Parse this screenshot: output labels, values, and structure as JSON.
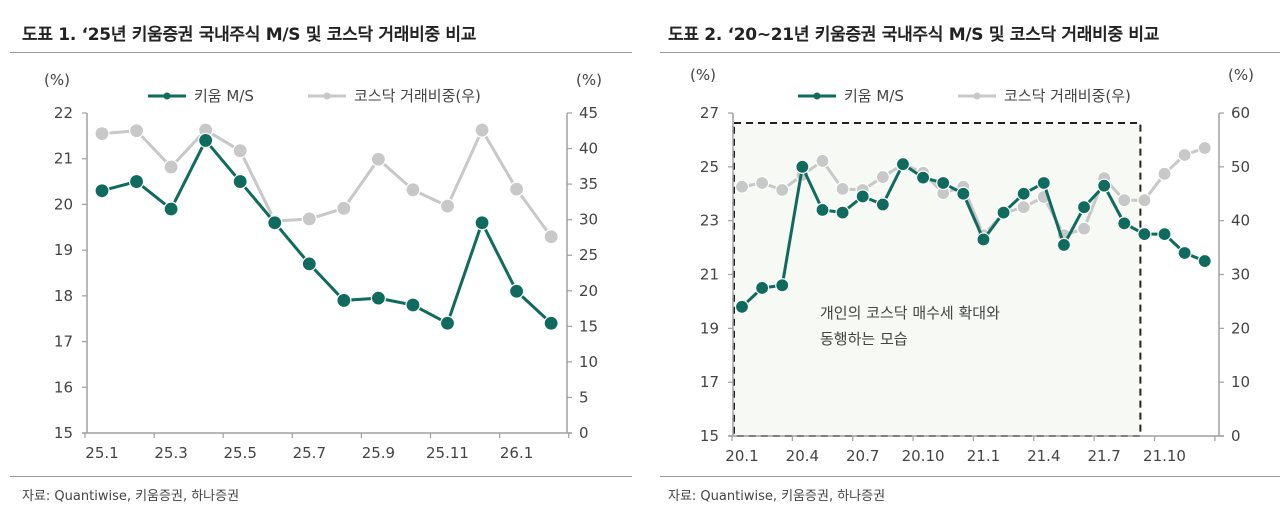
{
  "charts": [
    {
      "title": "도표 1. ‘25년 키움증권 국내주식 M/S 및 코스닥 거래비중 비교",
      "source": "자료: Quantiwise, 키움증권, 하나증권"
    },
    {
      "title": "도표 2. ‘20~21년 키움증권 국내주식 M/S 및 코스닥 거래비중 비교",
      "source": "자료: Quantiwise, 키움증권, 하나증권",
      "annotation": [
        "개인의 코스닥 매수세 확대와",
        "동행하는 모습"
      ]
    }
  ],
  "colors": {
    "kiwoom": "#0e6b5e",
    "kosdaq": "#c8c8c8",
    "highlight_bg": "#f6f9f4"
  },
  "chart_data": [
    {
      "type": "line",
      "title": "도표 1. ‘25년 키움증권 국내주식 M/S 및 코스닥 거래비중 비교",
      "x": [
        "25.1",
        "25.2",
        "25.3",
        "25.4",
        "25.5",
        "25.6",
        "25.7",
        "25.8",
        "25.9",
        "25.10",
        "25.11",
        "25.12",
        "26.1",
        "26.2"
      ],
      "xtick_labels": [
        "25.1",
        "25.3",
        "25.5",
        "25.7",
        "25.9",
        "25.11",
        "26.1"
      ],
      "ylabel_left": "(%)",
      "ylabel_right": "(%)",
      "ylim_left": [
        15,
        22
      ],
      "yticks_left": [
        15,
        16,
        17,
        18,
        19,
        20,
        21,
        22
      ],
      "ylim_right": [
        0,
        45
      ],
      "yticks_right": [
        0,
        5,
        10,
        15,
        20,
        25,
        30,
        35,
        40,
        45
      ],
      "legend_position": "top",
      "grid": false,
      "series": [
        {
          "name": "키움 M/S",
          "axis": "left",
          "values": [
            20.3,
            20.5,
            19.9,
            21.4,
            20.5,
            19.6,
            18.7,
            17.9,
            17.95,
            17.8,
            17.4,
            19.6,
            18.1,
            17.4
          ]
        },
        {
          "name": "코스닥 거래비중(우)",
          "axis": "right",
          "values": [
            42.1,
            42.5,
            37.4,
            42.6,
            39.7,
            29.8,
            30.1,
            31.6,
            38.5,
            34.2,
            31.9,
            42.6,
            34.3,
            27.6
          ]
        }
      ]
    },
    {
      "type": "line",
      "title": "도표 2. ‘20~21년 키움증권 국내주식 M/S 및 코스닥 거래비중 비교",
      "x": [
        "20.1",
        "20.2",
        "20.3",
        "20.4",
        "20.5",
        "20.6",
        "20.7",
        "20.8",
        "20.9",
        "20.10",
        "20.11",
        "20.12",
        "21.1",
        "21.2",
        "21.3",
        "21.4",
        "21.5",
        "21.6",
        "21.7",
        "21.8",
        "21.9",
        "21.10",
        "21.11",
        "21.12"
      ],
      "xtick_labels": [
        "20.1",
        "20.4",
        "20.7",
        "20.10",
        "21.1",
        "21.4",
        "21.7",
        "21.10"
      ],
      "ylabel_left": "(%)",
      "ylabel_right": "(%)",
      "ylim_left": [
        15,
        27
      ],
      "yticks_left": [
        15,
        17,
        19,
        21,
        23,
        25,
        27
      ],
      "ylim_right": [
        0,
        60
      ],
      "yticks_right": [
        0,
        10,
        20,
        30,
        40,
        50,
        60
      ],
      "legend_position": "top",
      "grid": false,
      "highlight_range": [
        "20.1",
        "21.9"
      ],
      "annotation": "개인의 코스닥 매수세 확대와 동행하는 모습",
      "series": [
        {
          "name": "키움 M/S",
          "axis": "left",
          "values": [
            19.8,
            20.5,
            20.6,
            25.0,
            23.4,
            23.3,
            23.9,
            23.6,
            25.1,
            24.6,
            24.4,
            24.0,
            22.3,
            23.3,
            24.0,
            24.4,
            22.1,
            23.5,
            24.3,
            22.9,
            22.5,
            22.5,
            21.8,
            21.5
          ]
        },
        {
          "name": "코스닥 거래비중(우)",
          "axis": "right",
          "values": [
            46.3,
            47.0,
            45.7,
            48.5,
            51.1,
            45.9,
            45.7,
            48.1,
            50.5,
            48.9,
            45.1,
            46.3,
            37.3,
            41.4,
            42.5,
            44.4,
            37.3,
            38.5,
            47.9,
            43.8,
            43.8,
            48.7,
            52.2,
            53.5
          ]
        }
      ]
    }
  ]
}
